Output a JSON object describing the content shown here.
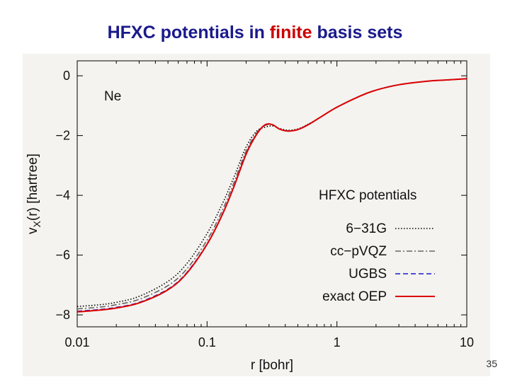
{
  "slide": {
    "title_before": "HFXC potentials in ",
    "title_highlight": "finite",
    "title_after": " basis sets",
    "page_number": "35"
  },
  "colors": {
    "title": "#1a1a8c",
    "highlight": "#cc0000",
    "plot_background": "#f4f3ef",
    "exact_oep": "#dd0000",
    "ugbs": "#1a1acc",
    "cc_pvqz": "#666666",
    "g631": "#000000"
  },
  "chart_data": {
    "type": "line",
    "title": "",
    "annotation": "Ne",
    "xlabel": "r  [bohr]",
    "ylabel": "vX(r)  [hartree]",
    "ylabel_main": "v",
    "ylabel_sub": "X",
    "ylabel_rest": "(r)  [hartree]",
    "xscale": "log",
    "xlim": [
      0.01,
      10
    ],
    "ylim": [
      -8.4,
      0.5
    ],
    "xticks": [
      0.01,
      0.1,
      1,
      10
    ],
    "xtick_labels": [
      "0.01",
      "0.1",
      "1",
      "10"
    ],
    "yticks": [
      0,
      -2,
      -4,
      -6,
      -8
    ],
    "ytick_labels": [
      "0",
      "−2",
      "−4",
      "−6",
      "−8"
    ],
    "legend_title": "HFXC potentials",
    "legend_position": "bottom-right",
    "series": [
      {
        "name": "6−31G",
        "style": "dotted",
        "color": "#000000",
        "x": [
          0.01,
          0.015,
          0.02,
          0.03,
          0.05,
          0.07,
          0.1,
          0.13,
          0.16,
          0.2,
          0.24,
          0.28,
          0.32,
          0.36,
          0.42,
          0.5,
          0.6,
          0.75,
          1.0,
          1.5,
          2.0,
          3.0,
          5.0,
          7.0,
          10.0
        ],
        "y": [
          -7.72,
          -7.66,
          -7.58,
          -7.38,
          -6.88,
          -6.28,
          -5.28,
          -4.32,
          -3.42,
          -2.38,
          -1.86,
          -1.72,
          -1.68,
          -1.76,
          -1.82,
          -1.78,
          -1.62,
          -1.38,
          -1.05,
          -0.68,
          -0.48,
          -0.3,
          -0.18,
          -0.14,
          -0.1
        ]
      },
      {
        "name": "cc−pVQZ",
        "style": "dashdot",
        "color": "#666666",
        "x": [
          0.01,
          0.015,
          0.02,
          0.03,
          0.05,
          0.07,
          0.1,
          0.13,
          0.16,
          0.2,
          0.24,
          0.28,
          0.32,
          0.36,
          0.42,
          0.5,
          0.6,
          0.75,
          1.0,
          1.5,
          2.0,
          3.0,
          5.0,
          7.0,
          10.0
        ],
        "y": [
          -7.8,
          -7.74,
          -7.66,
          -7.48,
          -7.02,
          -6.46,
          -5.5,
          -4.54,
          -3.6,
          -2.52,
          -1.92,
          -1.66,
          -1.64,
          -1.78,
          -1.84,
          -1.8,
          -1.63,
          -1.38,
          -1.05,
          -0.68,
          -0.48,
          -0.3,
          -0.18,
          -0.14,
          -0.1
        ]
      },
      {
        "name": "UGBS",
        "style": "dashed",
        "color": "#1a1acc",
        "x": [
          0.01,
          0.015,
          0.02,
          0.03,
          0.05,
          0.07,
          0.1,
          0.13,
          0.16,
          0.2,
          0.24,
          0.28,
          0.32,
          0.36,
          0.42,
          0.5,
          0.6,
          0.75,
          1.0,
          1.5,
          2.0,
          3.0,
          5.0,
          7.0,
          10.0
        ],
        "y": [
          -7.88,
          -7.82,
          -7.75,
          -7.58,
          -7.14,
          -6.58,
          -5.62,
          -4.66,
          -3.72,
          -2.6,
          -1.96,
          -1.64,
          -1.64,
          -1.78,
          -1.85,
          -1.8,
          -1.64,
          -1.38,
          -1.05,
          -0.68,
          -0.48,
          -0.3,
          -0.18,
          -0.14,
          -0.1
        ]
      },
      {
        "name": "exact OEP",
        "style": "solid",
        "color": "#dd0000",
        "x": [
          0.01,
          0.015,
          0.02,
          0.03,
          0.05,
          0.07,
          0.1,
          0.13,
          0.16,
          0.2,
          0.24,
          0.28,
          0.32,
          0.36,
          0.42,
          0.5,
          0.6,
          0.75,
          1.0,
          1.5,
          2.0,
          3.0,
          5.0,
          7.0,
          10.0
        ],
        "y": [
          -7.9,
          -7.84,
          -7.77,
          -7.6,
          -7.16,
          -6.6,
          -5.64,
          -4.68,
          -3.74,
          -2.62,
          -1.97,
          -1.64,
          -1.64,
          -1.78,
          -1.85,
          -1.8,
          -1.64,
          -1.38,
          -1.05,
          -0.68,
          -0.48,
          -0.3,
          -0.18,
          -0.14,
          -0.1
        ]
      }
    ]
  }
}
